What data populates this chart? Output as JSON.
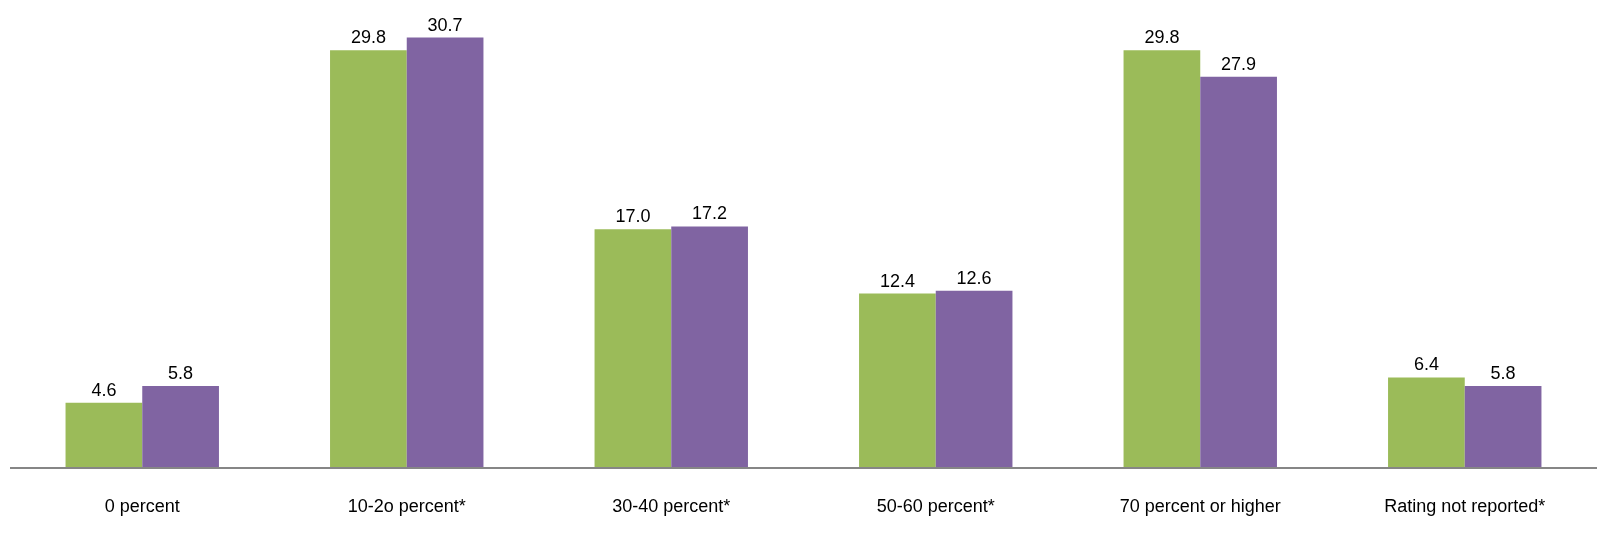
{
  "chart_data": {
    "type": "bar",
    "categories": [
      "0 percent",
      "10-2o percent*",
      "30-40 percent*",
      "50-60 percent*",
      "70 percent or higher",
      "Rating not reported*"
    ],
    "series": [
      {
        "color": "#9bbb59",
        "values": [
          4.6,
          29.8,
          17.0,
          12.4,
          29.8,
          6.4
        ],
        "value_labels": [
          "4.6",
          "29.8",
          "17.0",
          "12.4",
          "29.8",
          "6.4"
        ]
      },
      {
        "color": "#8064a2",
        "values": [
          5.8,
          30.7,
          17.2,
          12.6,
          27.9,
          5.8
        ],
        "value_labels": [
          "5.8",
          "30.7",
          "17.2",
          "12.6",
          "27.9",
          "5.8"
        ]
      }
    ],
    "tick_labels": "x"
  }
}
